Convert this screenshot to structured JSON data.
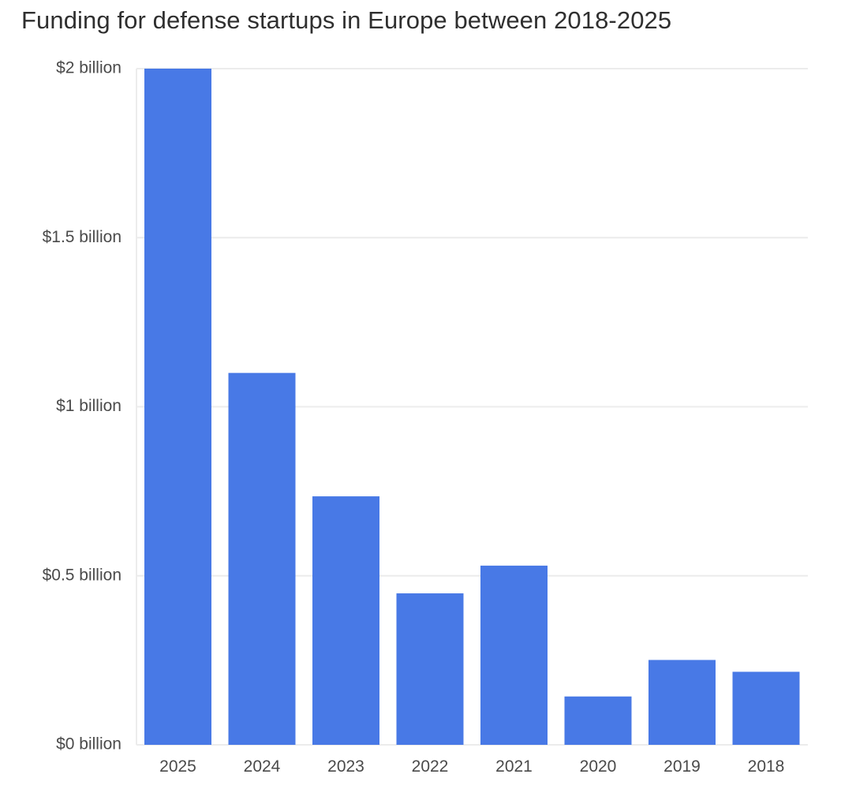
{
  "chart_data": {
    "type": "bar",
    "title": "Funding for defense startups in Europe between 2018-2025",
    "xlabel": "",
    "ylabel": "",
    "categories": [
      "2025",
      "2024",
      "2023",
      "2022",
      "2021",
      "2020",
      "2019",
      "2018"
    ],
    "values": [
      2.0,
      1.1,
      0.735,
      0.448,
      0.53,
      0.143,
      0.251,
      0.216
    ],
    "unit": "billion USD",
    "ylim": [
      0,
      2
    ],
    "y_ticks": [
      0,
      0.5,
      1,
      1.5,
      2
    ],
    "y_tick_labels": [
      "$0 billion",
      "$0.5 billion",
      "$1 billion",
      "$1.5 billion",
      "$2 billion"
    ],
    "grid": true,
    "legend": "none",
    "bar_color": "#4879e6",
    "grid_color": "#ececec"
  }
}
